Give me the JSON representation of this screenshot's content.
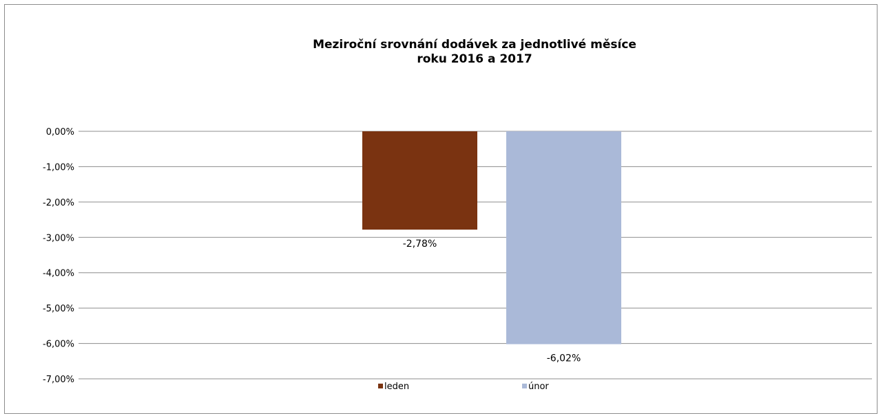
{
  "chart_data": {
    "type": "bar",
    "title": "Meziroční srovnání dodávek za jednotlivé měsíce",
    "subtitle": "roku 2016 a 2017",
    "xlabel": "",
    "ylabel": "",
    "ylim": [
      -7,
      0
    ],
    "y_ticks": [
      "0,00%",
      "-1,00%",
      "-2,00%",
      "-3,00%",
      "-4,00%",
      "-5,00%",
      "-6,00%",
      "-7,00%"
    ],
    "grid": true,
    "legend_position": "bottom",
    "series": [
      {
        "name": "leden",
        "values": [
          -2.78
        ],
        "label": "-2,78%",
        "color": "#7a3311"
      },
      {
        "name": "únor",
        "values": [
          -6.02
        ],
        "label": "-6,02%",
        "color": "#aab9d8"
      }
    ]
  }
}
